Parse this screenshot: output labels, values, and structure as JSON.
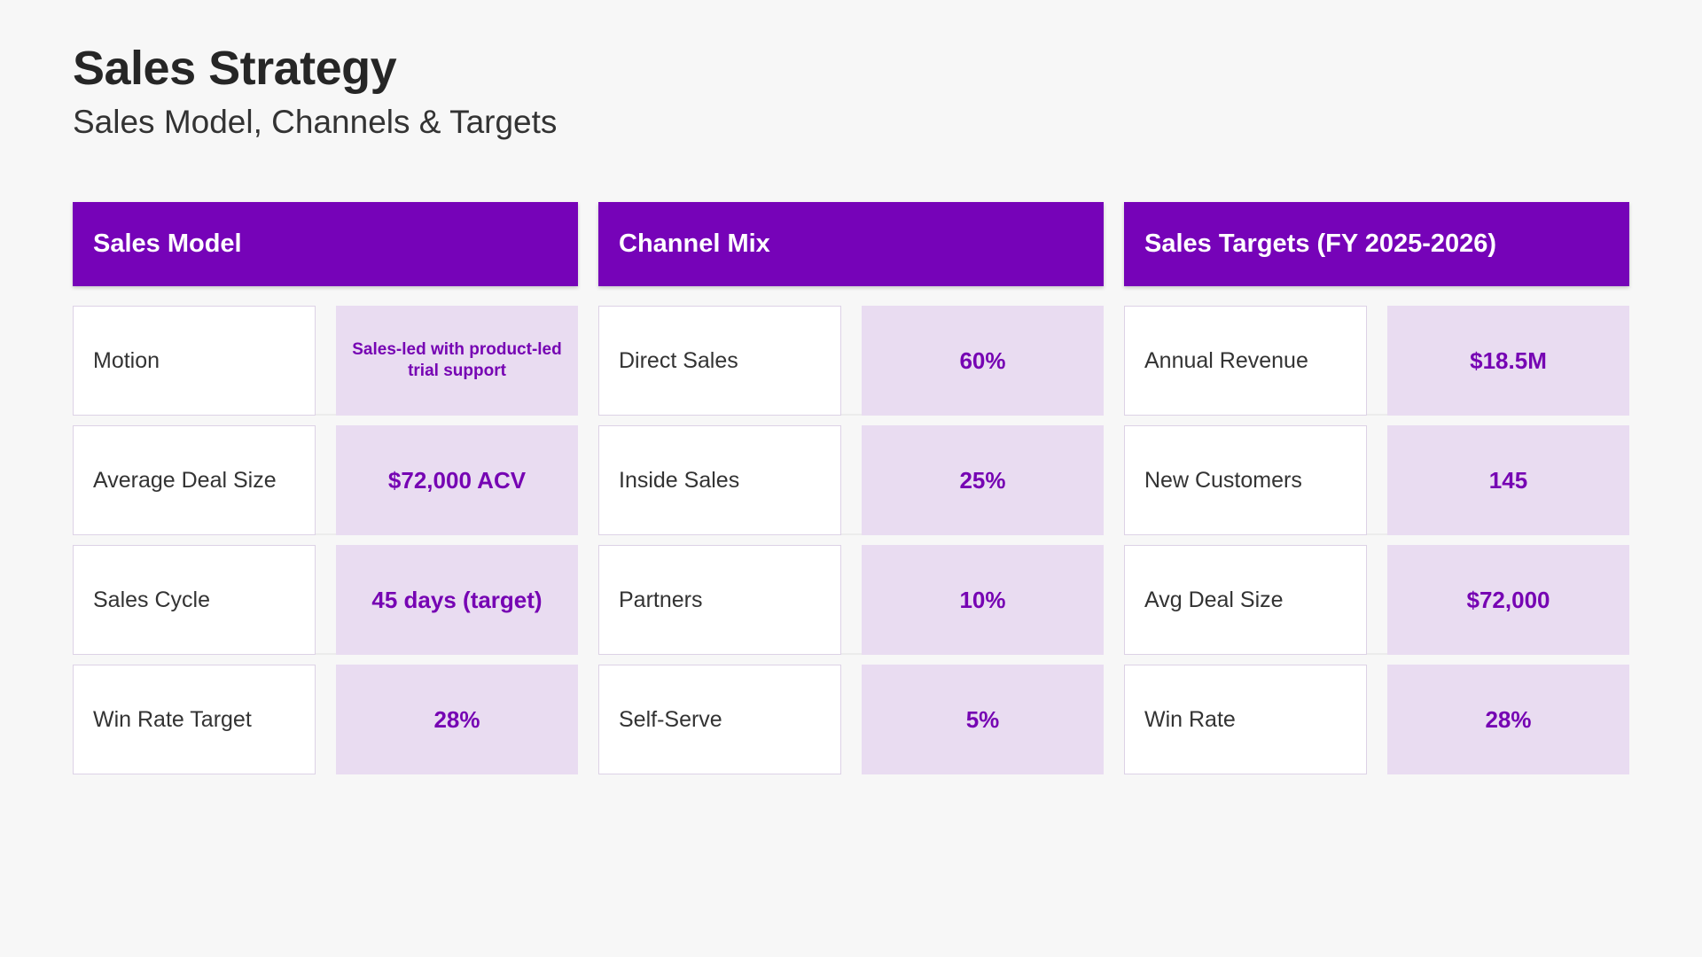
{
  "title": "Sales Strategy",
  "subtitle": "Sales Model, Channels & Targets",
  "columns": [
    {
      "header": "Sales Model",
      "rows": [
        {
          "label": "Motion",
          "value": "Sales-led with product-led trial support"
        },
        {
          "label": "Average Deal Size",
          "value": "$72,000 ACV"
        },
        {
          "label": "Sales Cycle",
          "value": "45 days (target)"
        },
        {
          "label": "Win Rate Target",
          "value": "28%"
        }
      ]
    },
    {
      "header": "Channel Mix",
      "rows": [
        {
          "label": "Direct Sales",
          "value": "60%"
        },
        {
          "label": "Inside Sales",
          "value": "25%"
        },
        {
          "label": "Partners",
          "value": "10%"
        },
        {
          "label": "Self-Serve",
          "value": "5%"
        }
      ]
    },
    {
      "header": "Sales Targets (FY 2025-2026)",
      "rows": [
        {
          "label": "Annual Revenue",
          "value": "$18.5M"
        },
        {
          "label": "New Customers",
          "value": "145"
        },
        {
          "label": "Avg Deal Size",
          "value": "$72,000"
        },
        {
          "label": "Win Rate",
          "value": "28%"
        }
      ]
    }
  ],
  "colors": {
    "accent": "#7603b8",
    "value_bg": "#e9dcf1",
    "page_bg": "#f7f7f7"
  }
}
